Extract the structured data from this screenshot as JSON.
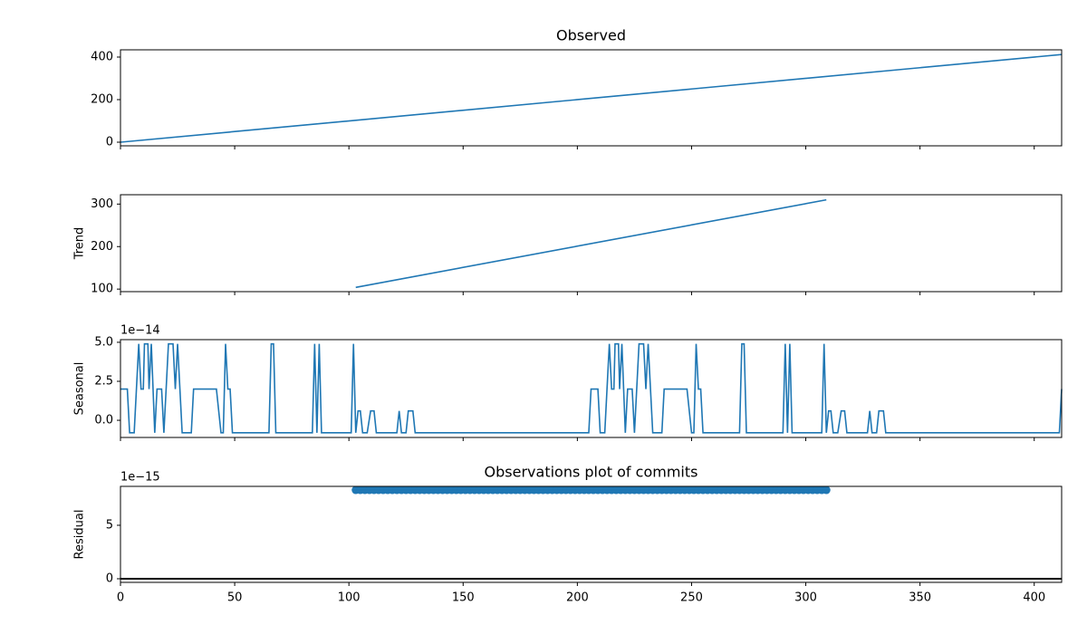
{
  "chart_data": [
    {
      "type": "line",
      "title": "Observed",
      "color": "#1f77b4",
      "x": [
        0,
        412
      ],
      "values": [
        0,
        412
      ],
      "xlim": [
        0,
        412
      ],
      "ylim": [
        -17,
        434
      ],
      "xticks": [
        0,
        50,
        100,
        150,
        200,
        250,
        300,
        350,
        400
      ],
      "yticks": [
        0,
        200,
        400
      ]
    },
    {
      "type": "line",
      "ylabel": "Trend",
      "color": "#1f77b4",
      "x": [
        103,
        309
      ],
      "values": [
        104,
        310
      ],
      "xlim": [
        0,
        412
      ],
      "ylim": [
        94,
        322
      ],
      "xticks": [
        0,
        50,
        100,
        150,
        200,
        250,
        300,
        350,
        400
      ],
      "yticks": [
        100,
        200,
        300
      ]
    },
    {
      "type": "line",
      "ylabel": "Seasonal",
      "offset": "1e−14",
      "color": "#1f77b4",
      "x": [
        0,
        3,
        4,
        6,
        8,
        9,
        10,
        10.5,
        12,
        12.5,
        13.5,
        15,
        16,
        18,
        19,
        21,
        23,
        24,
        25,
        27,
        31,
        32,
        42,
        44,
        45,
        46,
        47,
        48,
        49,
        65,
        66,
        67,
        68,
        84,
        85,
        86,
        87,
        88,
        101,
        102,
        103,
        104,
        105,
        106,
        108,
        109.5,
        111,
        112,
        121,
        122,
        123,
        125,
        126,
        128,
        129,
        205,
        206,
        209,
        210,
        212,
        214,
        215,
        216,
        216.5,
        218,
        218.5,
        219.5,
        221,
        222,
        224,
        225,
        227,
        229,
        230,
        231,
        233,
        237,
        238,
        248,
        250,
        251,
        252,
        253,
        254,
        255,
        271,
        272,
        273,
        274,
        290,
        291,
        292,
        293,
        294,
        307,
        308,
        309,
        310,
        311,
        312,
        314,
        315.5,
        317,
        318,
        327,
        328,
        329,
        331,
        332,
        334,
        335,
        411,
        412
      ],
      "values": [
        2,
        2,
        -0.8,
        -0.8,
        4.9,
        2,
        2,
        4.9,
        4.9,
        2,
        4.9,
        -0.8,
        2,
        2,
        -0.8,
        4.9,
        4.9,
        2,
        4.9,
        -0.8,
        -0.8,
        2,
        2,
        -0.8,
        -0.8,
        4.9,
        2,
        2,
        -0.8,
        -0.8,
        4.9,
        4.9,
        -0.8,
        -0.8,
        4.9,
        -0.8,
        4.9,
        -0.8,
        -0.8,
        4.9,
        -0.8,
        0.6,
        0.6,
        -0.8,
        -0.8,
        0.6,
        0.6,
        -0.8,
        -0.8,
        0.6,
        -0.8,
        -0.8,
        0.6,
        0.6,
        -0.8,
        -0.8,
        2,
        2,
        -0.8,
        -0.8,
        4.9,
        2,
        2,
        4.9,
        4.9,
        2,
        4.9,
        -0.8,
        2,
        2,
        -0.8,
        4.9,
        4.9,
        2,
        4.9,
        -0.8,
        -0.8,
        2,
        2,
        -0.8,
        -0.8,
        4.9,
        2,
        2,
        -0.8,
        -0.8,
        4.9,
        4.9,
        -0.8,
        -0.8,
        4.9,
        -0.8,
        4.9,
        -0.8,
        -0.8,
        4.9,
        -0.8,
        0.6,
        0.6,
        -0.8,
        -0.8,
        0.6,
        0.6,
        -0.8,
        -0.8,
        0.6,
        -0.8,
        -0.8,
        0.6,
        0.6,
        -0.8,
        -0.8,
        2
      ],
      "xlim": [
        0,
        412
      ],
      "ylim": [
        -1.1,
        5.17
      ],
      "xticks": [
        0,
        50,
        100,
        150,
        200,
        250,
        300,
        350,
        400
      ],
      "yticks": [
        {
          "value": 0,
          "label": "0.0"
        },
        2.5,
        {
          "value": 5,
          "label": "5.0"
        }
      ]
    },
    {
      "type": "scatter",
      "title": "Observations plot of commits",
      "ylabel": "Residual",
      "offset": "1e−15",
      "color": "#1f77b4",
      "hline": 0,
      "x": [
        103,
        105,
        107,
        109,
        111,
        113,
        115,
        117,
        119,
        121,
        123,
        125,
        127,
        129,
        131,
        133,
        135,
        137,
        139,
        141,
        143,
        145,
        147,
        149,
        151,
        153,
        155,
        157,
        159,
        161,
        163,
        165,
        167,
        169,
        171,
        173,
        175,
        177,
        179,
        181,
        183,
        185,
        187,
        189,
        191,
        193,
        195,
        197,
        199,
        201,
        203,
        205,
        207,
        209,
        211,
        213,
        215,
        217,
        219,
        221,
        223,
        225,
        227,
        229,
        231,
        233,
        235,
        237,
        239,
        241,
        243,
        245,
        247,
        249,
        251,
        253,
        255,
        257,
        259,
        261,
        263,
        265,
        267,
        269,
        271,
        273,
        275,
        277,
        279,
        281,
        283,
        285,
        287,
        289,
        291,
        293,
        295,
        297,
        299,
        301,
        303,
        305,
        307,
        309
      ],
      "values": [
        8.3,
        8.3,
        8.3,
        8.3,
        8.3,
        8.3,
        8.3,
        8.3,
        8.3,
        8.3,
        8.3,
        8.3,
        8.3,
        8.3,
        8.3,
        8.3,
        8.3,
        8.3,
        8.3,
        8.3,
        8.3,
        8.3,
        8.3,
        8.3,
        8.3,
        8.3,
        8.3,
        8.3,
        8.3,
        8.3,
        8.3,
        8.3,
        8.3,
        8.3,
        8.3,
        8.3,
        8.3,
        8.3,
        8.3,
        8.3,
        8.3,
        8.3,
        8.3,
        8.3,
        8.3,
        8.3,
        8.3,
        8.3,
        8.3,
        8.3,
        8.3,
        8.3,
        8.3,
        8.3,
        8.3,
        8.3,
        8.3,
        8.3,
        8.3,
        8.3,
        8.3,
        8.3,
        8.3,
        8.3,
        8.3,
        8.3,
        8.3,
        8.3,
        8.3,
        8.3,
        8.3,
        8.3,
        8.3,
        8.3,
        8.3,
        8.3,
        8.3,
        8.3,
        8.3,
        8.3,
        8.3,
        8.3,
        8.3,
        8.3,
        8.3,
        8.3,
        8.3,
        8.3,
        8.3,
        8.3,
        8.3,
        8.3,
        8.3,
        8.3,
        8.3,
        8.3,
        8.3,
        8.3,
        8.3,
        8.3,
        8.3,
        8.3,
        8.3,
        8.3
      ],
      "xlim": [
        0,
        412
      ],
      "ylim": [
        -0.34,
        8.64
      ],
      "xticks": [
        0,
        50,
        100,
        150,
        200,
        250,
        300,
        350,
        400
      ],
      "yticks": [
        0,
        5
      ]
    }
  ]
}
